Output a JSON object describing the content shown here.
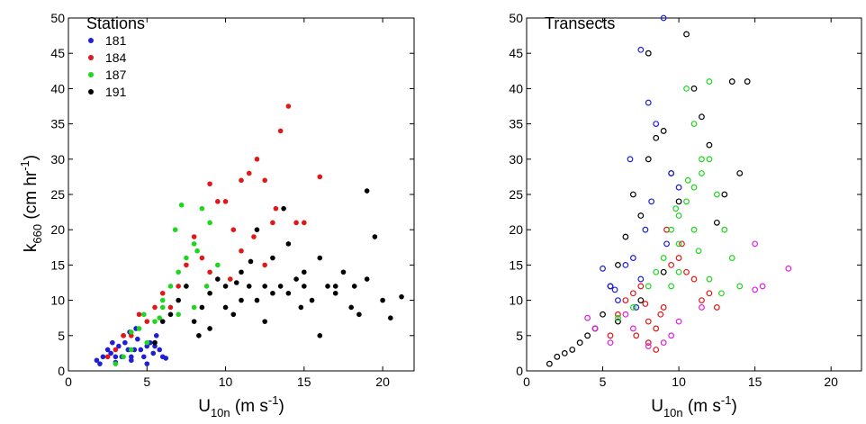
{
  "chart_data": [
    {
      "type": "scatter",
      "title": "Stations",
      "xlabel": {
        "main": "U",
        "sub": "10n",
        "rest": " (m s",
        "sup": "-1",
        "close": ")"
      },
      "ylabel": {
        "main": "k",
        "sub": "660",
        "rest": " (cm hr",
        "sup": "-1",
        "close": ")"
      },
      "xlim": [
        0,
        22
      ],
      "ylim": [
        0,
        50
      ],
      "xticks": [
        0,
        5,
        10,
        15,
        20
      ],
      "yticks": [
        0,
        5,
        10,
        15,
        20,
        25,
        30,
        35,
        40,
        45,
        50
      ],
      "marker": "filled",
      "legend_placement": "top-left",
      "series": [
        {
          "name": "181",
          "color": "#1f1fd6",
          "points": [
            [
              1.8,
              1.5
            ],
            [
              2,
              1
            ],
            [
              2.2,
              2
            ],
            [
              2.5,
              3
            ],
            [
              2.7,
              2.5
            ],
            [
              3,
              2
            ],
            [
              3.2,
              3.5
            ],
            [
              3.4,
              2
            ],
            [
              3.6,
              4
            ],
            [
              3.8,
              3
            ],
            [
              4,
              2
            ],
            [
              4.2,
              3
            ],
            [
              4.4,
              4.5
            ],
            [
              4.6,
              3
            ],
            [
              4.8,
              2
            ],
            [
              5,
              3.5
            ],
            [
              5.2,
              4
            ],
            [
              5.4,
              2.5
            ],
            [
              5.6,
              5
            ],
            [
              5.8,
              3
            ],
            [
              6,
              2
            ],
            [
              3,
              1.2
            ],
            [
              4,
              1.5
            ],
            [
              5,
              1
            ],
            [
              6.2,
              1.8
            ],
            [
              4.3,
              6
            ],
            [
              3.5,
              5
            ],
            [
              2.8,
              4
            ],
            [
              3.9,
              5.5
            ],
            [
              5.5,
              3.5
            ]
          ]
        },
        {
          "name": "184",
          "color": "#e01818",
          "points": [
            [
              2.5,
              2
            ],
            [
              3,
              3
            ],
            [
              3.5,
              5
            ],
            [
              4,
              5
            ],
            [
              4.5,
              8
            ],
            [
              5,
              7
            ],
            [
              5.5,
              9
            ],
            [
              6,
              11
            ],
            [
              6.5,
              9
            ],
            [
              7,
              12
            ],
            [
              7.5,
              15
            ],
            [
              8,
              19
            ],
            [
              8.5,
              16
            ],
            [
              9,
              26.5
            ],
            [
              9.5,
              24
            ],
            [
              10,
              24
            ],
            [
              10.5,
              20
            ],
            [
              11,
              27
            ],
            [
              11.5,
              28
            ],
            [
              12,
              30
            ],
            [
              12.5,
              27
            ],
            [
              13,
              21
            ],
            [
              13.5,
              34
            ],
            [
              14,
              37.5
            ],
            [
              14.5,
              21
            ],
            [
              15,
              21
            ],
            [
              16,
              27.5
            ],
            [
              11,
              17
            ],
            [
              12.5,
              15
            ],
            [
              9,
              14
            ],
            [
              10.3,
              13
            ],
            [
              11.8,
              19
            ],
            [
              13.2,
              23
            ]
          ]
        },
        {
          "name": "187",
          "color": "#1fd61f",
          "points": [
            [
              3,
              1
            ],
            [
              3.5,
              2
            ],
            [
              4,
              3
            ],
            [
              4,
              5.5
            ],
            [
              4.5,
              6
            ],
            [
              5,
              4
            ],
            [
              5.5,
              7
            ],
            [
              6,
              9
            ],
            [
              6.5,
              12
            ],
            [
              7,
              14
            ],
            [
              7.5,
              16
            ],
            [
              8,
              18
            ],
            [
              8.5,
              23
            ],
            [
              9,
              21
            ],
            [
              9.5,
              15
            ],
            [
              6,
              10
            ],
            [
              7,
              8
            ],
            [
              7.5,
              12
            ],
            [
              8,
              9
            ],
            [
              8.2,
              17
            ],
            [
              8.8,
              12
            ],
            [
              7.2,
              23.5
            ],
            [
              6.8,
              20
            ],
            [
              5.8,
              7.5
            ],
            [
              4.8,
              8
            ]
          ]
        },
        {
          "name": "191",
          "color": "#000000",
          "points": [
            [
              5.5,
              4
            ],
            [
              6,
              7
            ],
            [
              6.5,
              8
            ],
            [
              7,
              10
            ],
            [
              7.5,
              12
            ],
            [
              8,
              7
            ],
            [
              8.5,
              9
            ],
            [
              9,
              11
            ],
            [
              9.5,
              13
            ],
            [
              10,
              12
            ],
            [
              10.5,
              8
            ],
            [
              11,
              14
            ],
            [
              11.5,
              12
            ],
            [
              12,
              10
            ],
            [
              12.5,
              12
            ],
            [
              13,
              16
            ],
            [
              13.5,
              12
            ],
            [
              14,
              11
            ],
            [
              14.5,
              13
            ],
            [
              15,
              12
            ],
            [
              15.5,
              10
            ],
            [
              16,
              5
            ],
            [
              16.5,
              12
            ],
            [
              17,
              11
            ],
            [
              17.5,
              14
            ],
            [
              18,
              9
            ],
            [
              18.5,
              8
            ],
            [
              19,
              25.5
            ],
            [
              19.5,
              19
            ],
            [
              20,
              10
            ],
            [
              20.5,
              7.5
            ],
            [
              21.2,
              10.5
            ],
            [
              12,
              20
            ],
            [
              14,
              18
            ],
            [
              11,
              10
            ],
            [
              10,
              9
            ],
            [
              9,
              6
            ],
            [
              13,
              11
            ],
            [
              15,
              14
            ],
            [
              17,
              12
            ],
            [
              19,
              13
            ],
            [
              16,
              16
            ],
            [
              12.5,
              7
            ],
            [
              14.8,
              9
            ],
            [
              8.3,
              5
            ],
            [
              10.7,
              12.5
            ],
            [
              13.7,
              23
            ],
            [
              11.6,
              15.5
            ],
            [
              18.2,
              12
            ]
          ]
        }
      ]
    },
    {
      "type": "scatter",
      "title": "Transects",
      "xlabel": {
        "main": "U",
        "sub": "10n",
        "rest": " (m s",
        "sup": "-1",
        "close": ")"
      },
      "ylabel": null,
      "xlim": [
        0,
        22
      ],
      "ylim": [
        0,
        50
      ],
      "xticks": [
        0,
        5,
        10,
        15,
        20
      ],
      "yticks": [
        0,
        5,
        10,
        15,
        20,
        25,
        30,
        35,
        40,
        45,
        50
      ],
      "marker": "open",
      "series": [
        {
          "color": "#000000",
          "points": [
            [
              1.5,
              1
            ],
            [
              2,
              2
            ],
            [
              2.5,
              2.5
            ],
            [
              3,
              3
            ],
            [
              3.5,
              4
            ],
            [
              4,
              5
            ],
            [
              4.5,
              6
            ],
            [
              5,
              8
            ],
            [
              5.5,
              12
            ],
            [
              6,
              15
            ],
            [
              6.5,
              19
            ],
            [
              7,
              25
            ],
            [
              7.5,
              22
            ],
            [
              8,
              30
            ],
            [
              8.5,
              33
            ],
            [
              9,
              34
            ],
            [
              9.5,
              28
            ],
            [
              10,
              24
            ],
            [
              10.5,
              47.7
            ],
            [
              11,
              40
            ],
            [
              11.5,
              36
            ],
            [
              12,
              32
            ],
            [
              12.5,
              21
            ],
            [
              13,
              25
            ],
            [
              13.5,
              41
            ],
            [
              14,
              28
            ],
            [
              14.5,
              41
            ],
            [
              8,
              45
            ],
            [
              7.5,
              10
            ],
            [
              9,
              14
            ],
            [
              6,
              7
            ]
          ]
        },
        {
          "color": "#1f1fd6",
          "points": [
            [
              5,
              14.5
            ],
            [
              5.5,
              12
            ],
            [
              6,
              10
            ],
            [
              6.5,
              15
            ],
            [
              7,
              16
            ],
            [
              7.5,
              45.5
            ],
            [
              8,
              38
            ],
            [
              8.5,
              35
            ],
            [
              9,
              50
            ],
            [
              9.5,
              28
            ],
            [
              10,
              26
            ],
            [
              7.2,
              9
            ],
            [
              7.8,
              20
            ],
            [
              6.8,
              30
            ],
            [
              8.2,
              24
            ],
            [
              5.8,
              11.5
            ],
            [
              9.2,
              18
            ],
            [
              7.5,
              13
            ]
          ]
        },
        {
          "color": "#e01818",
          "points": [
            [
              5.5,
              5
            ],
            [
              6,
              8
            ],
            [
              6.5,
              10
            ],
            [
              7,
              11
            ],
            [
              7.5,
              12
            ],
            [
              8,
              7
            ],
            [
              8.5,
              6
            ],
            [
              9,
              9
            ],
            [
              9.5,
              15
            ],
            [
              10,
              16
            ],
            [
              10.5,
              14
            ],
            [
              11,
              13
            ],
            [
              11.5,
              10
            ],
            [
              12,
              11
            ],
            [
              12.5,
              9
            ],
            [
              8.5,
              3
            ],
            [
              8,
              4
            ],
            [
              7.2,
              5
            ],
            [
              9.2,
              20
            ],
            [
              10.2,
              18
            ],
            [
              8.8,
              8
            ],
            [
              7.8,
              9.5
            ]
          ]
        },
        {
          "color": "#1fd61f",
          "points": [
            [
              6,
              7.5
            ],
            [
              7,
              9
            ],
            [
              8,
              12
            ],
            [
              8.5,
              14
            ],
            [
              9,
              16
            ],
            [
              9.5,
              20
            ],
            [
              10,
              22
            ],
            [
              10.5,
              24
            ],
            [
              11,
              26
            ],
            [
              11.5,
              28
            ],
            [
              12,
              30
            ],
            [
              12.5,
              25
            ],
            [
              13,
              20
            ],
            [
              13.5,
              16
            ],
            [
              14,
              12
            ],
            [
              10,
              14
            ],
            [
              10.5,
              40
            ],
            [
              11,
              35
            ],
            [
              11.5,
              30
            ],
            [
              12,
              41
            ],
            [
              9.5,
              12
            ],
            [
              10,
              18
            ],
            [
              11,
              20
            ],
            [
              12,
              13
            ],
            [
              11.3,
              17
            ],
            [
              10.6,
              27
            ],
            [
              9.8,
              23
            ],
            [
              12.8,
              11
            ]
          ]
        },
        {
          "color": "#e020e0",
          "points": [
            [
              4,
              7.5
            ],
            [
              4.5,
              6
            ],
            [
              5.5,
              4
            ],
            [
              7,
              6
            ],
            [
              8,
              3.5
            ],
            [
              9,
              4
            ],
            [
              9.5,
              5
            ],
            [
              10,
              7
            ],
            [
              15,
              18
            ],
            [
              15.5,
              12
            ],
            [
              17.2,
              14.5
            ],
            [
              15,
              11.5
            ],
            [
              11.5,
              9
            ],
            [
              6.5,
              8
            ]
          ]
        }
      ]
    }
  ]
}
